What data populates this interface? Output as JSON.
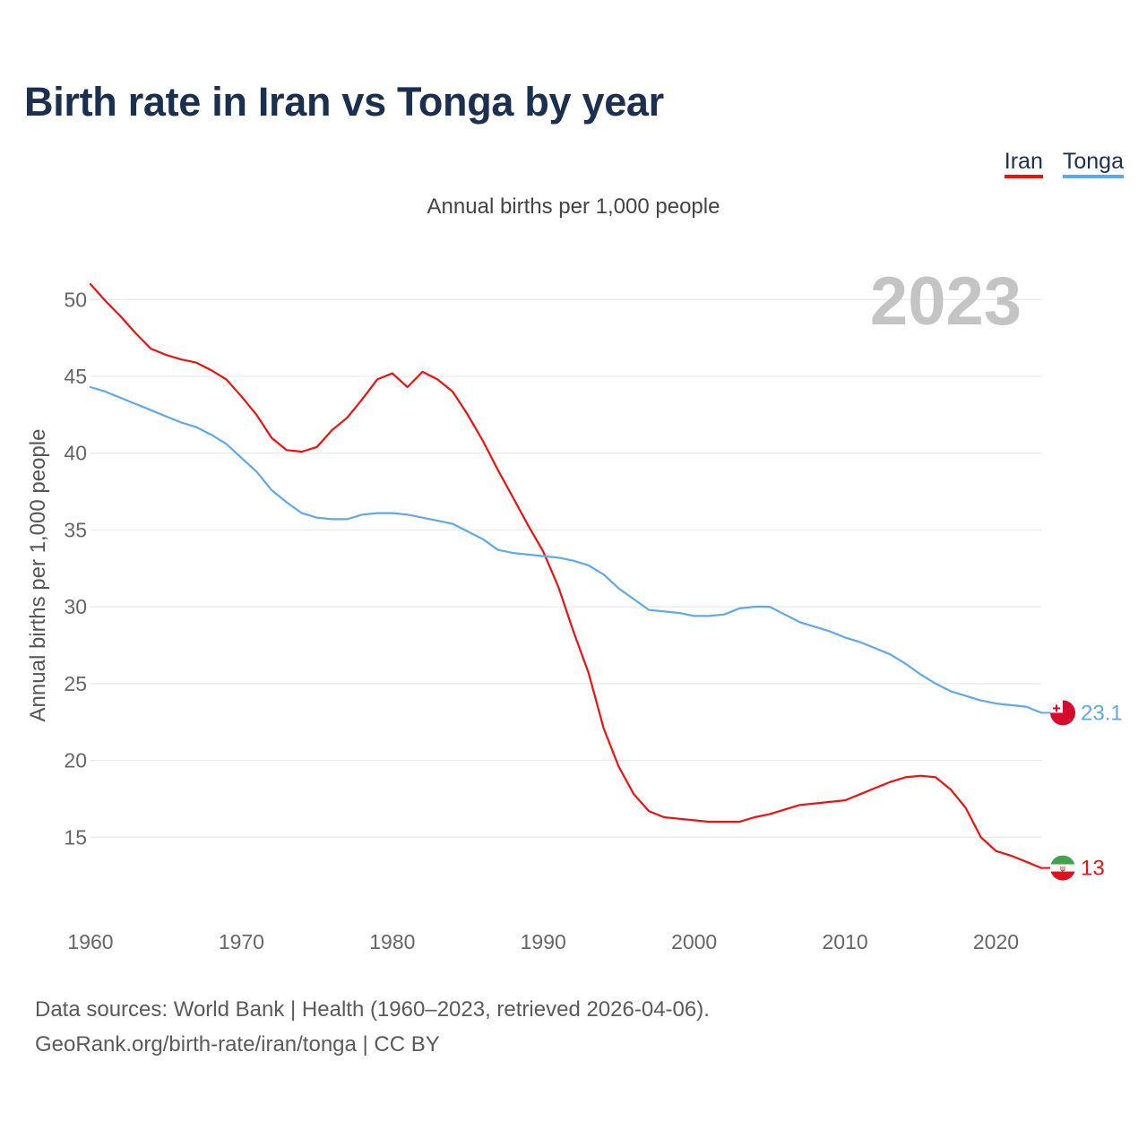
{
  "title": "Birth rate in Iran vs Tonga by year",
  "subtitle": "Annual births per 1,000 people",
  "legend": [
    {
      "label": "Iran",
      "color": "#ee1111"
    },
    {
      "label": "Tonga",
      "color": "#62a8e8"
    }
  ],
  "sources": {
    "line1": "Data sources: World Bank | Health (1960–2023, retrieved 2026-04-06).",
    "line2": "GeoRank.org/birth-rate/iran/tonga | CC BY"
  },
  "chart_data": {
    "type": "line",
    "title": "Birth rate in Iran vs Tonga by year",
    "ylabel": "Annual births per 1,000 people",
    "xlabel": "",
    "year_watermark": "2023",
    "xlim": [
      1960,
      2023
    ],
    "ylim": [
      10,
      52
    ],
    "x_ticks": [
      1960,
      1970,
      1980,
      1990,
      2000,
      2010,
      2020
    ],
    "y_ticks": [
      15,
      20,
      25,
      30,
      35,
      40,
      45,
      50
    ],
    "grid": true,
    "legend_position": "top-right",
    "x": [
      1960,
      1961,
      1962,
      1963,
      1964,
      1965,
      1966,
      1967,
      1968,
      1969,
      1970,
      1971,
      1972,
      1973,
      1974,
      1975,
      1976,
      1977,
      1978,
      1979,
      1980,
      1981,
      1982,
      1983,
      1984,
      1985,
      1986,
      1987,
      1988,
      1989,
      1990,
      1991,
      1992,
      1993,
      1994,
      1995,
      1996,
      1997,
      1998,
      1999,
      2000,
      2001,
      2002,
      2003,
      2004,
      2005,
      2006,
      2007,
      2008,
      2009,
      2010,
      2011,
      2012,
      2013,
      2014,
      2015,
      2016,
      2017,
      2018,
      2019,
      2020,
      2021,
      2022,
      2023
    ],
    "series": [
      {
        "name": "Iran",
        "color": "#ee1111",
        "end_label": "13",
        "values": [
          51.0,
          49.9,
          48.9,
          47.8,
          46.8,
          46.4,
          46.1,
          45.9,
          45.4,
          44.8,
          43.7,
          42.5,
          41.0,
          40.2,
          40.1,
          40.4,
          41.5,
          42.3,
          43.5,
          44.8,
          45.2,
          44.3,
          45.3,
          44.8,
          44.0,
          42.5,
          40.8,
          38.9,
          37.1,
          35.3,
          33.6,
          31.3,
          28.4,
          25.7,
          22.1,
          19.6,
          17.8,
          16.7,
          16.3,
          16.2,
          16.1,
          16.0,
          16.0,
          16.0,
          16.3,
          16.5,
          16.8,
          17.1,
          17.2,
          17.3,
          17.4,
          17.8,
          18.2,
          18.6,
          18.9,
          19.0,
          18.9,
          18.1,
          16.9,
          15.0,
          14.1,
          13.8,
          13.4,
          13.0
        ]
      },
      {
        "name": "Tonga",
        "color": "#62a8e8",
        "end_label": "23.1",
        "values": [
          44.3,
          44.0,
          43.6,
          43.2,
          42.8,
          42.4,
          42.0,
          41.7,
          41.2,
          40.6,
          39.7,
          38.8,
          37.6,
          36.8,
          36.1,
          35.8,
          35.7,
          35.7,
          36.0,
          36.1,
          36.1,
          36.0,
          35.8,
          35.6,
          35.4,
          34.9,
          34.4,
          33.7,
          33.5,
          33.4,
          33.3,
          33.2,
          33.0,
          32.7,
          32.1,
          31.2,
          30.5,
          29.8,
          29.7,
          29.6,
          29.4,
          29.4,
          29.5,
          29.9,
          30.0,
          30.0,
          29.5,
          29.0,
          28.7,
          28.4,
          28.0,
          27.7,
          27.3,
          26.9,
          26.3,
          25.6,
          25.0,
          24.5,
          24.2,
          23.9,
          23.7,
          23.6,
          23.5,
          23.1
        ]
      }
    ]
  }
}
